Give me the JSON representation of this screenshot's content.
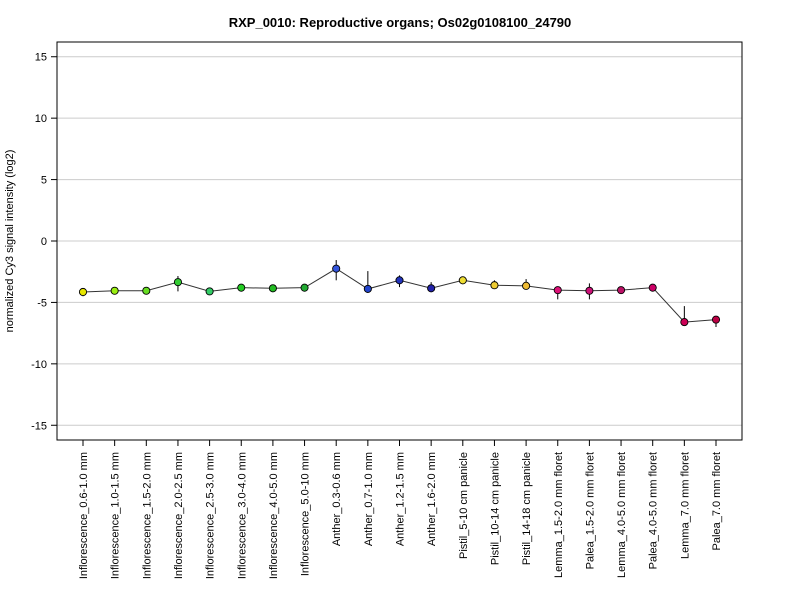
{
  "chart_data": {
    "type": "line",
    "title": "RXP_0010: Reproductive organs; Os02g0108100_24790",
    "ylabel": "normalized Cy3 signal intensity (log2)",
    "xlabel": "",
    "ylim": [
      -16.2,
      16.2
    ],
    "yticks": [
      15,
      10,
      5,
      0,
      -5,
      -10,
      -15
    ],
    "grid": true,
    "categories": [
      "Inflorescence_0.6-1.0 mm",
      "Inflorescence_1.0-1.5 mm",
      "Inflorescence_1.5-2.0 mm",
      "Inflorescence_2.0-2.5 mm",
      "Inflorescence_2.5-3.0 mm",
      "Inflorescence_3.0-4.0 mm",
      "Inflorescence_4.0-5.0 mm",
      "Inflorescence_5.0-10 mm",
      "Anther_0.3-0.6 mm",
      "Anther_0.7-1.0 mm",
      "Anther_1.2-1.5 mm",
      "Anther_1.6-2.0 mm",
      "Pistil_5-10 cm panicle",
      "Pistil_10-14 cm panicle",
      "Pistil_14-18 cm panicle",
      "Lemma_1.5-2.0 mm floret",
      "Palea_1.5-2.0 mm floret",
      "Lemma_4.0-5.0 mm floret",
      "Palea_4.0-5.0 mm floret",
      "Lemma_7.0 mm floret",
      "Palea_7.0 mm floret"
    ],
    "values": [
      -4.15,
      -4.05,
      -4.05,
      -3.35,
      -4.1,
      -3.8,
      -3.85,
      -3.8,
      -2.25,
      -3.9,
      -3.2,
      -3.85,
      -3.2,
      -3.6,
      -3.65,
      -4.0,
      -4.05,
      -4.0,
      -3.8,
      -6.6,
      -6.4
    ],
    "error_low": [
      -4.5,
      -4.2,
      -4.2,
      -4.1,
      -4.2,
      -3.9,
      -3.95,
      -3.9,
      -3.2,
      -4.0,
      -3.75,
      -4.1,
      -3.3,
      -3.9,
      -3.95,
      -4.75,
      -4.75,
      -4.1,
      -3.9,
      -6.7,
      -7.0
    ],
    "error_high": [
      -3.85,
      -3.9,
      -3.9,
      -2.85,
      -3.95,
      -3.7,
      -3.75,
      -3.65,
      -1.55,
      -2.45,
      -2.8,
      -3.35,
      -3.05,
      -3.2,
      -3.1,
      -3.75,
      -3.45,
      -3.85,
      -3.7,
      -5.3,
      -6.2
    ],
    "point_colors": [
      "#e6e600",
      "#99ee11",
      "#66dd22",
      "#33cc33",
      "#33cc66",
      "#22cc22",
      "#22bb22",
      "#22aa33",
      "#3355dd",
      "#2244cc",
      "#2233bb",
      "#2222aa",
      "#eedd33",
      "#eecc33",
      "#eebb33",
      "#dd1177",
      "#cc1177",
      "#bb1166",
      "#cc0066",
      "#cc0055",
      "#bb0044"
    ],
    "line_color": "#333333",
    "grid_color": "#cccccc"
  }
}
